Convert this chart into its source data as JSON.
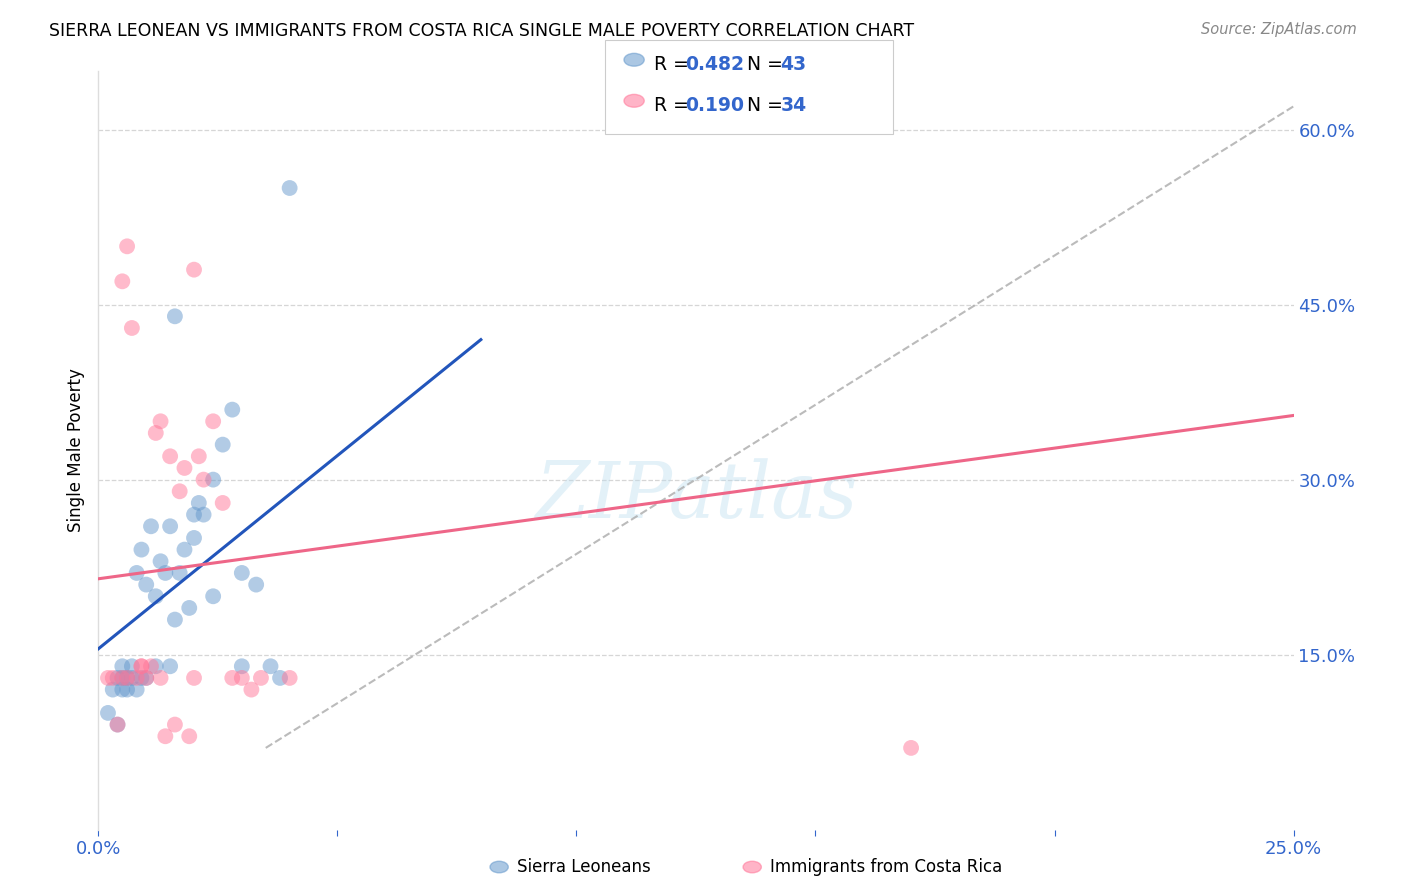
{
  "title": "SIERRA LEONEAN VS IMMIGRANTS FROM COSTA RICA SINGLE MALE POVERTY CORRELATION CHART",
  "source": "Source: ZipAtlas.com",
  "ylabel": "Single Male Poverty",
  "xlim": [
    0.0,
    0.25
  ],
  "ylim": [
    0.0,
    0.65
  ],
  "yticks": [
    0.15,
    0.3,
    0.45,
    0.6
  ],
  "ytick_labels": [
    "15.0%",
    "30.0%",
    "45.0%",
    "60.0%"
  ],
  "xtick_positions": [
    0.0,
    0.05,
    0.1,
    0.15,
    0.2,
    0.25
  ],
  "xtick_labels": [
    "0.0%",
    "",
    "",
    "",
    "",
    "25.0%"
  ],
  "blue_color": "#6699CC",
  "pink_color": "#FF7799",
  "blue_line_color": "#2255BB",
  "pink_line_color": "#EE6688",
  "blue_R": 0.482,
  "blue_N": 43,
  "pink_R": 0.19,
  "pink_N": 34,
  "legend_label_blue": "Sierra Leoneans",
  "legend_label_pink": "Immigrants from Costa Rica",
  "watermark": "ZIPatlas",
  "blue_scatter_x": [
    0.002,
    0.003,
    0.004,
    0.004,
    0.005,
    0.005,
    0.005,
    0.006,
    0.006,
    0.007,
    0.007,
    0.008,
    0.008,
    0.009,
    0.009,
    0.01,
    0.01,
    0.011,
    0.012,
    0.012,
    0.013,
    0.014,
    0.015,
    0.015,
    0.016,
    0.017,
    0.018,
    0.019,
    0.02,
    0.021,
    0.022,
    0.024,
    0.026,
    0.028,
    0.03,
    0.033,
    0.036,
    0.04,
    0.016,
    0.02,
    0.024,
    0.03,
    0.038
  ],
  "blue_scatter_y": [
    0.1,
    0.12,
    0.09,
    0.13,
    0.12,
    0.13,
    0.14,
    0.13,
    0.12,
    0.13,
    0.14,
    0.12,
    0.22,
    0.13,
    0.24,
    0.21,
    0.13,
    0.26,
    0.2,
    0.14,
    0.23,
    0.22,
    0.14,
    0.26,
    0.18,
    0.22,
    0.24,
    0.19,
    0.25,
    0.28,
    0.27,
    0.3,
    0.33,
    0.36,
    0.22,
    0.21,
    0.14,
    0.55,
    0.44,
    0.27,
    0.2,
    0.14,
    0.13
  ],
  "pink_scatter_x": [
    0.002,
    0.003,
    0.004,
    0.005,
    0.005,
    0.006,
    0.007,
    0.008,
    0.009,
    0.01,
    0.011,
    0.012,
    0.013,
    0.014,
    0.015,
    0.016,
    0.017,
    0.018,
    0.019,
    0.02,
    0.021,
    0.022,
    0.024,
    0.026,
    0.028,
    0.03,
    0.032,
    0.034,
    0.006,
    0.009,
    0.013,
    0.02,
    0.17,
    0.04
  ],
  "pink_scatter_y": [
    0.13,
    0.13,
    0.09,
    0.13,
    0.47,
    0.13,
    0.43,
    0.13,
    0.14,
    0.13,
    0.14,
    0.34,
    0.13,
    0.08,
    0.32,
    0.09,
    0.29,
    0.31,
    0.08,
    0.13,
    0.32,
    0.3,
    0.35,
    0.28,
    0.13,
    0.13,
    0.12,
    0.13,
    0.5,
    0.14,
    0.35,
    0.48,
    0.07,
    0.13
  ],
  "blue_line_x": [
    0.0,
    0.08
  ],
  "blue_line_y": [
    0.155,
    0.42
  ],
  "pink_line_x": [
    0.0,
    0.25
  ],
  "pink_line_y": [
    0.215,
    0.355
  ],
  "diag_line_x": [
    0.035,
    0.25
  ],
  "diag_line_y": [
    0.07,
    0.62
  ]
}
